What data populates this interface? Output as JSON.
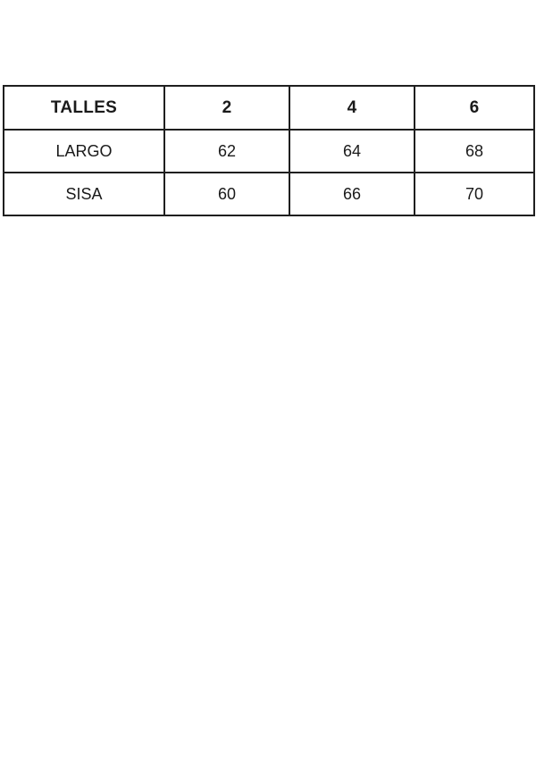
{
  "colors": {
    "background": "#ffffff",
    "border": "#1f1f1f",
    "text": "#1a1a1a"
  },
  "table": {
    "headers": [
      "TALLES",
      "2",
      "4",
      "6"
    ],
    "rows": [
      {
        "label": "LARGO",
        "values": [
          "62",
          "64",
          "68"
        ]
      },
      {
        "label": "SISA",
        "values": [
          "60",
          "66",
          "70"
        ]
      }
    ]
  }
}
